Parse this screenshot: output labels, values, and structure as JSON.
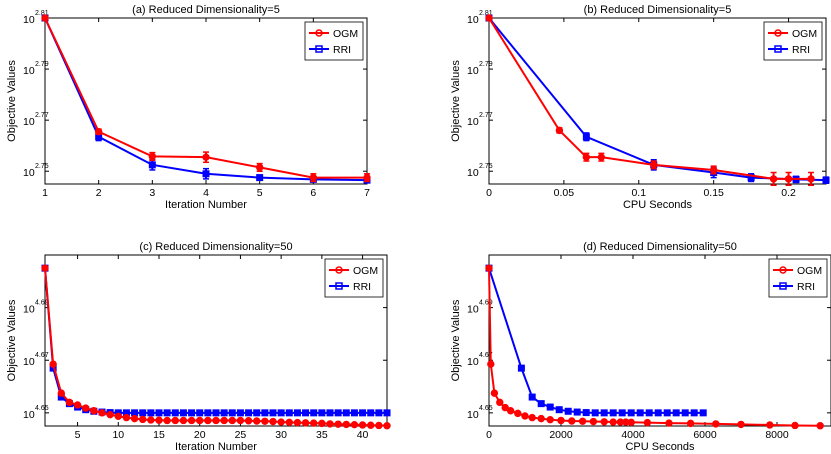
{
  "chart_data": [
    {
      "type": "line",
      "title": "(a) Reduced Dimensionality=5",
      "xlabel": "Iteration Number",
      "ylabel": "Objective Values",
      "yscale": "log10",
      "xlim": [
        1,
        7
      ],
      "ylim": [
        2.745,
        2.81
      ],
      "xticks": [
        1,
        2,
        3,
        4,
        5,
        6,
        7
      ],
      "yticks": [
        2.75,
        2.77,
        2.79,
        2.81
      ],
      "ytick_base": "10",
      "ytick_exps": [
        "2.75",
        "2.77",
        "2.79",
        "2.81"
      ],
      "grid": false,
      "legend": "top-right",
      "series": [
        {
          "name": "OGM",
          "color": "#ff0000",
          "marker": "circle",
          "errorbars": true,
          "x": [
            1,
            2,
            3,
            4,
            5,
            6,
            7
          ],
          "y": [
            2.81,
            2.7655,
            2.7558,
            2.7555,
            2.7515,
            2.7475,
            2.7475
          ],
          "err": [
            0,
            0.001,
            0.0015,
            0.002,
            0.0015,
            0.0015,
            0.0015
          ]
        },
        {
          "name": "RRI",
          "color": "#0000ff",
          "marker": "square",
          "errorbars": true,
          "x": [
            1,
            2,
            3,
            4,
            5,
            6,
            7
          ],
          "y": [
            2.81,
            2.7635,
            2.7525,
            2.749,
            2.7475,
            2.7468,
            2.7465
          ],
          "err": [
            0,
            0.0015,
            0.002,
            0.002,
            0.001,
            0.0008,
            0.0008
          ]
        }
      ]
    },
    {
      "type": "line",
      "title": "(b) Reduced Dimensionality=5",
      "xlabel": "CPU Seconds",
      "ylabel": "Objective Values",
      "yscale": "log10",
      "xlim": [
        0,
        0.225
      ],
      "ylim": [
        2.745,
        2.81
      ],
      "xticks": [
        0,
        0.05,
        0.1,
        0.15,
        0.2
      ],
      "yticks": [
        2.75,
        2.77,
        2.79,
        2.81
      ],
      "ytick_base": "10",
      "ytick_exps": [
        "2.75",
        "2.77",
        "2.79",
        "2.81"
      ],
      "grid": false,
      "legend": "top-right",
      "series": [
        {
          "name": "OGM",
          "color": "#ff0000",
          "marker": "circle",
          "errorbars": true,
          "x": [
            0,
            0.047,
            0.065,
            0.075,
            0.11,
            0.15,
            0.19,
            0.2,
            0.215
          ],
          "y": [
            2.81,
            2.766,
            2.7555,
            2.7555,
            2.7525,
            2.7505,
            2.747,
            2.747,
            2.747
          ],
          "err": [
            0,
            0.001,
            0.0015,
            0.0015,
            0.0015,
            0.0015,
            0.0025,
            0.0025,
            0.0025
          ]
        },
        {
          "name": "RRI",
          "color": "#0000ff",
          "marker": "square",
          "errorbars": true,
          "x": [
            0,
            0.065,
            0.11,
            0.15,
            0.175,
            0.205,
            0.225
          ],
          "y": [
            2.81,
            2.7635,
            2.7525,
            2.7495,
            2.7475,
            2.7468,
            2.7465
          ],
          "err": [
            0,
            0.0015,
            0.002,
            0.002,
            0.0015,
            0.0012,
            0.0012
          ]
        }
      ]
    },
    {
      "type": "line",
      "title": "(c) Reduced Dimensionality=50",
      "xlabel": "Iteration Number",
      "ylabel": "Objective Values",
      "yscale": "log10",
      "xlim": [
        1,
        43
      ],
      "ylim": [
        4.645,
        4.71
      ],
      "xticks": [
        5,
        10,
        15,
        20,
        25,
        30,
        35,
        40
      ],
      "yticks": [
        4.65,
        4.67,
        4.69
      ],
      "ytick_base": "10",
      "ytick_exps": [
        "4.65",
        "4.67",
        "4.69"
      ],
      "grid": false,
      "legend": "top-right",
      "series": [
        {
          "name": "OGM",
          "color": "#ff0000",
          "marker": "circle",
          "errorbars": false,
          "x": [
            1,
            2,
            3,
            4,
            5,
            6,
            7,
            8,
            9,
            10,
            11,
            12,
            13,
            14,
            15,
            16,
            17,
            18,
            19,
            20,
            21,
            22,
            23,
            24,
            25,
            26,
            27,
            28,
            29,
            30,
            31,
            32,
            33,
            34,
            35,
            36,
            37,
            38,
            39,
            40,
            41,
            42,
            43
          ],
          "y": [
            4.705,
            4.6685,
            4.6575,
            4.654,
            4.653,
            4.6518,
            4.6508,
            4.65,
            4.6493,
            4.6487,
            4.6482,
            4.6478,
            4.6475,
            4.6473,
            4.6472,
            4.6471,
            4.6471,
            4.6471,
            4.6471,
            4.6471,
            4.6471,
            4.6471,
            4.6471,
            4.6471,
            4.6471,
            4.647,
            4.6469,
            4.6468,
            4.6467,
            4.6465,
            4.6464,
            4.6463,
            4.6462,
            4.6461,
            4.646,
            4.6458,
            4.6457,
            4.6456,
            4.6455,
            4.6454,
            4.6453,
            4.6452,
            4.6451
          ]
        },
        {
          "name": "RRI",
          "color": "#0000ff",
          "marker": "square",
          "errorbars": false,
          "x": [
            1,
            2,
            3,
            4,
            5,
            6,
            7,
            8,
            9,
            10,
            11,
            12,
            13,
            14,
            15,
            16,
            17,
            18,
            19,
            20,
            21,
            22,
            23,
            24,
            25,
            26,
            27,
            28,
            29,
            30,
            31,
            32,
            33,
            34,
            35,
            36,
            37,
            38,
            39,
            40,
            41,
            42,
            43
          ],
          "y": [
            4.705,
            4.667,
            4.656,
            4.6535,
            4.6522,
            4.6512,
            4.6506,
            4.6503,
            4.6501,
            4.65,
            4.65,
            4.65,
            4.65,
            4.65,
            4.65,
            4.65,
            4.65,
            4.65,
            4.65,
            4.65,
            4.65,
            4.65,
            4.65,
            4.65,
            4.65,
            4.65,
            4.65,
            4.65,
            4.65,
            4.65,
            4.65,
            4.65,
            4.65,
            4.65,
            4.65,
            4.65,
            4.65,
            4.65,
            4.65,
            4.65,
            4.65,
            4.65,
            4.65
          ]
        }
      ]
    },
    {
      "type": "line",
      "title": "(d) Reduced Dimensionality=50",
      "xlabel": "CPU Seconds",
      "ylabel": "Objective Values",
      "yscale": "log10",
      "xlim": [
        0,
        9500
      ],
      "ylim": [
        4.645,
        4.71
      ],
      "xticks": [
        0,
        2000,
        4000,
        6000,
        8000
      ],
      "yticks": [
        4.65,
        4.67,
        4.69
      ],
      "ytick_base": "10",
      "ytick_exps": [
        "4.65",
        "4.67",
        "4.69"
      ],
      "grid": false,
      "legend": "top-right",
      "series": [
        {
          "name": "OGM",
          "color": "#ff0000",
          "marker": "circle",
          "errorbars": false,
          "x": [
            0,
            50,
            150,
            300,
            450,
            600,
            800,
            1000,
            1200,
            1450,
            1700,
            2000,
            2300,
            2600,
            2900,
            3200,
            3450,
            3650,
            3800,
            3950,
            4400,
            5000,
            5600,
            6300,
            7000,
            7800,
            8500,
            9200
          ],
          "y": [
            4.705,
            4.6685,
            4.6575,
            4.654,
            4.652,
            4.6508,
            4.6498,
            4.6488,
            4.6482,
            4.6478,
            4.6474,
            4.6471,
            4.6469,
            4.6468,
            4.6467,
            4.6466,
            4.6465,
            4.6465,
            4.6465,
            4.6464,
            4.6463,
            4.6461,
            4.646,
            4.6458,
            4.6456,
            4.6454,
            4.6452,
            4.6451
          ]
        },
        {
          "name": "RRI",
          "color": "#0000ff",
          "marker": "square",
          "errorbars": false,
          "x": [
            0,
            900,
            1200,
            1450,
            1700,
            1950,
            2200,
            2450,
            2700,
            2950,
            3200,
            3450,
            3700,
            3950,
            4200,
            4450,
            4700,
            4950,
            5200,
            5450,
            5700,
            5950
          ],
          "y": [
            4.705,
            4.667,
            4.656,
            4.6535,
            4.6522,
            4.6512,
            4.6506,
            4.6503,
            4.6501,
            4.65,
            4.65,
            4.65,
            4.65,
            4.65,
            4.65,
            4.65,
            4.65,
            4.65,
            4.65,
            4.65,
            4.65,
            4.65
          ]
        }
      ]
    }
  ]
}
